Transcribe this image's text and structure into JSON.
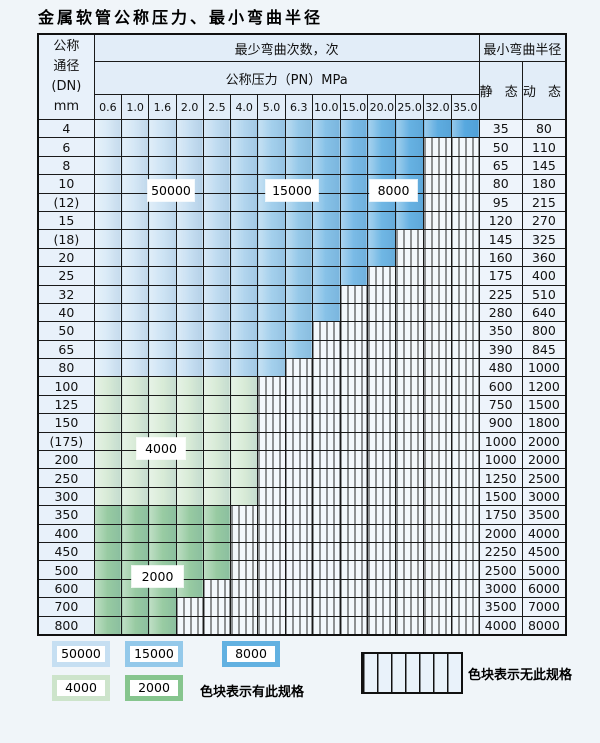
{
  "title": "金属软管公称压力、最小弯曲半径",
  "table": {
    "corner_header": [
      "公称",
      "通径",
      "(DN)",
      "mm"
    ],
    "bend_cycles_header": "最少弯曲次数，次",
    "pressure_header": "公称压力（PN）MPa",
    "pressure_columns": [
      "0.6",
      "1.0",
      "1.6",
      "2.0",
      "2.5",
      "4.0",
      "5.0",
      "6.3",
      "10.0",
      "15.0",
      "20.0",
      "25.0",
      "32.0",
      "35.0"
    ],
    "radius_header": "最小弯曲半径",
    "static_header": "静 态",
    "dynamic_header": "动 态",
    "rows": [
      {
        "dn": "4",
        "zone": "b",
        "cols": 14,
        "static": "35",
        "dynamic": "80"
      },
      {
        "dn": "6",
        "zone": "b",
        "cols": 12,
        "static": "50",
        "dynamic": "110"
      },
      {
        "dn": "8",
        "zone": "b",
        "cols": 12,
        "static": "65",
        "dynamic": "145"
      },
      {
        "dn": "10",
        "zone": "b",
        "cols": 12,
        "static": "80",
        "dynamic": "180"
      },
      {
        "dn": "(12)",
        "zone": "b",
        "cols": 12,
        "static": "95",
        "dynamic": "215"
      },
      {
        "dn": "15",
        "zone": "b",
        "cols": 12,
        "static": "120",
        "dynamic": "270"
      },
      {
        "dn": "(18)",
        "zone": "b",
        "cols": 11,
        "static": "145",
        "dynamic": "325"
      },
      {
        "dn": "20",
        "zone": "b",
        "cols": 11,
        "static": "160",
        "dynamic": "360"
      },
      {
        "dn": "25",
        "zone": "b",
        "cols": 10,
        "static": "175",
        "dynamic": "400"
      },
      {
        "dn": "32",
        "zone": "b",
        "cols": 9,
        "static": "225",
        "dynamic": "510"
      },
      {
        "dn": "40",
        "zone": "b",
        "cols": 9,
        "static": "280",
        "dynamic": "640"
      },
      {
        "dn": "50",
        "zone": "b",
        "cols": 8,
        "static": "350",
        "dynamic": "800"
      },
      {
        "dn": "65",
        "zone": "b",
        "cols": 8,
        "static": "390",
        "dynamic": "845"
      },
      {
        "dn": "80",
        "zone": "b",
        "cols": 7,
        "static": "480",
        "dynamic": "1000"
      },
      {
        "dn": "100",
        "zone": "g1",
        "cols": 6,
        "static": "600",
        "dynamic": "1200"
      },
      {
        "dn": "125",
        "zone": "g1",
        "cols": 6,
        "static": "750",
        "dynamic": "1500"
      },
      {
        "dn": "150",
        "zone": "g1",
        "cols": 6,
        "static": "900",
        "dynamic": "1800"
      },
      {
        "dn": "(175)",
        "zone": "g1",
        "cols": 6,
        "static": "1000",
        "dynamic": "2000"
      },
      {
        "dn": "200",
        "zone": "g1",
        "cols": 6,
        "static": "1000",
        "dynamic": "2000"
      },
      {
        "dn": "250",
        "zone": "g1",
        "cols": 6,
        "static": "1250",
        "dynamic": "2500"
      },
      {
        "dn": "300",
        "zone": "g1",
        "cols": 6,
        "static": "1500",
        "dynamic": "3000"
      },
      {
        "dn": "350",
        "zone": "g2",
        "cols": 5,
        "static": "1750",
        "dynamic": "3500"
      },
      {
        "dn": "400",
        "zone": "g2",
        "cols": 5,
        "static": "2000",
        "dynamic": "4000"
      },
      {
        "dn": "450",
        "zone": "g2",
        "cols": 5,
        "static": "2250",
        "dynamic": "4500"
      },
      {
        "dn": "500",
        "zone": "g2",
        "cols": 5,
        "static": "2500",
        "dynamic": "5000"
      },
      {
        "dn": "600",
        "zone": "g2",
        "cols": 4,
        "static": "3000",
        "dynamic": "6000"
      },
      {
        "dn": "700",
        "zone": "g2",
        "cols": 3,
        "static": "3500",
        "dynamic": "7000"
      },
      {
        "dn": "800",
        "zone": "g2",
        "cols": 3,
        "static": "4000",
        "dynamic": "8000"
      }
    ]
  },
  "zone_labels": [
    {
      "text": "50000"
    },
    {
      "text": "15000"
    },
    {
      "text": "8000"
    },
    {
      "text": "4000"
    },
    {
      "text": "2000"
    }
  ],
  "legend": {
    "items": [
      {
        "value": "50000"
      },
      {
        "value": "15000"
      },
      {
        "value": "8000"
      },
      {
        "value": "4000"
      },
      {
        "value": "2000"
      }
    ],
    "has_spec_text": "色块表示有此规格",
    "no_spec_text": "色块表示无此规格"
  },
  "colors": {
    "blue_columns": [
      "#d9eaf7",
      "#d3e6f5",
      "#cde3f4",
      "#c7dff2",
      "#c0dcf1",
      "#b1d5ee",
      "#a3cfec",
      "#96c9e9",
      "#86c1e7",
      "#7abbe6",
      "#6fb6e4",
      "#66b1e2",
      "#5eace0",
      "#57a8df"
    ],
    "green_4000": "#d8ebd7",
    "green_2000": "#98cba2",
    "legend_borders": {
      "c50000": "#c6dff2",
      "c15000": "#94c9ea",
      "c8000": "#62b1e1",
      "c4000": "#cde4cb",
      "c2000": "#86c58e"
    },
    "hatch_bg": "#f3f8fc"
  }
}
